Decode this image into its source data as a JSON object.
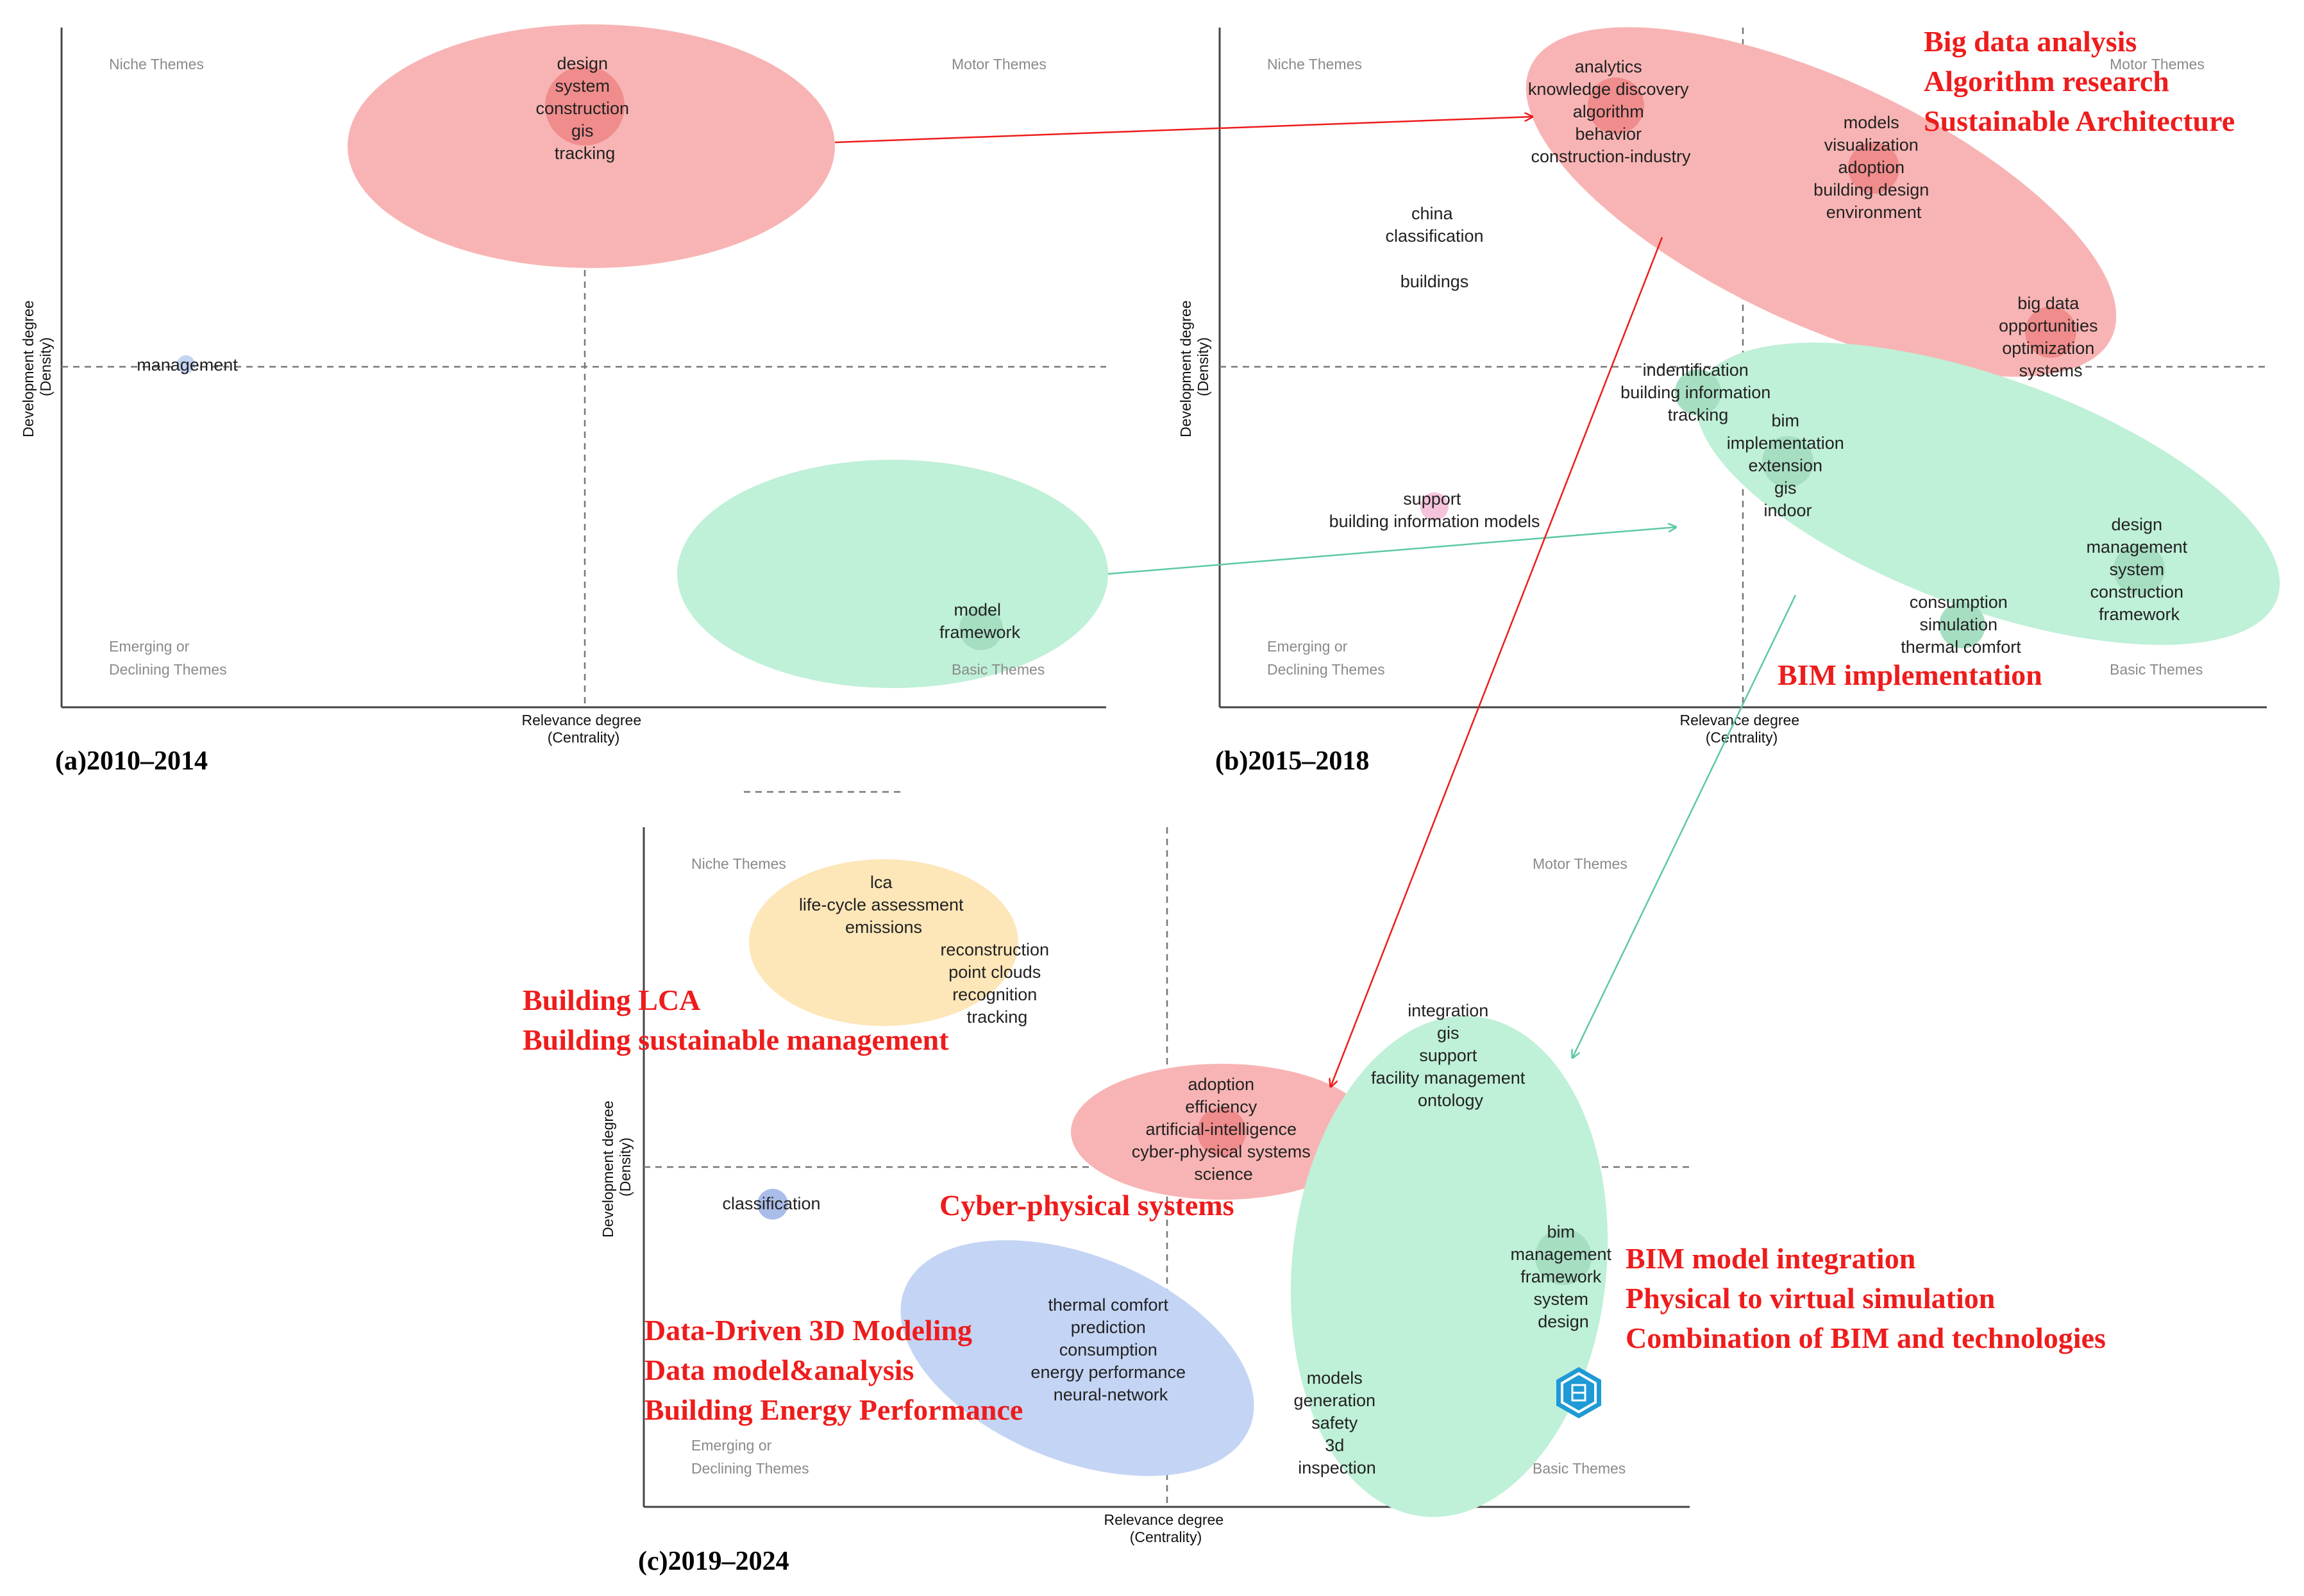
{
  "panels": [
    {
      "label": "(a)2010–2014",
      "xlabel": [
        "Relevance degree",
        "(Centrality)"
      ],
      "ylabel": [
        "Development degree",
        "(Density)"
      ],
      "quadrants": {
        "niche": [
          "Niche Themes"
        ],
        "motor": [
          "Motor Themes"
        ],
        "emerging": [
          "Emerging or",
          "Declining Themes"
        ],
        "basic": [
          "Basic Themes"
        ]
      },
      "clusters": [
        {
          "name": "management",
          "keywords": [
            "management"
          ]
        },
        {
          "name": "design",
          "keywords": [
            "design",
            "system",
            "construction",
            "gis",
            "tracking"
          ]
        },
        {
          "name": "model",
          "keywords": [
            "model",
            "framework"
          ]
        }
      ]
    },
    {
      "label": "(b)2015–2018",
      "xlabel": [
        "Relevance degree",
        "(Centrality)"
      ],
      "ylabel": [
        "Development degree",
        "(Density)"
      ],
      "quadrants": {
        "niche": [
          "Niche Themes"
        ],
        "motor": [
          "Motor Themes"
        ],
        "emerging": [
          "Emerging or",
          "Declining Themes"
        ],
        "basic": [
          "Basic Themes"
        ]
      },
      "clusters": [
        {
          "name": "analytics",
          "keywords": [
            "analytics",
            "knowledge discovery",
            "algorithm",
            "behavior",
            "construction-industry"
          ]
        },
        {
          "name": "models",
          "keywords": [
            "models",
            "visualization",
            "adoption",
            "building design",
            "environment"
          ]
        },
        {
          "name": "china",
          "keywords": [
            "china",
            "classification"
          ]
        },
        {
          "name": "buildings",
          "keywords": [
            "buildings"
          ]
        },
        {
          "name": "big data",
          "keywords": [
            "big data",
            "opportunities",
            "optimization",
            "systems"
          ]
        },
        {
          "name": "indentification",
          "keywords": [
            "indentification",
            "building information",
            "tracking"
          ]
        },
        {
          "name": "bim",
          "keywords": [
            "bim",
            "implementation",
            "extension",
            "gis",
            "indoor"
          ]
        },
        {
          "name": "support",
          "keywords": [
            "support",
            "building information models"
          ]
        },
        {
          "name": "design",
          "keywords": [
            "design",
            "management",
            "system",
            "construction",
            "framework"
          ]
        },
        {
          "name": "consumption",
          "keywords": [
            "consumption",
            "simulation",
            "thermal comfort"
          ]
        }
      ]
    },
    {
      "label": "(c)2019–2024",
      "xlabel": [
        "Relevance degree",
        "(Centrality)"
      ],
      "ylabel": [
        "Development degree",
        "(Density)"
      ],
      "quadrants": {
        "niche": [
          "Niche Themes"
        ],
        "motor": [
          "Motor Themes"
        ],
        "emerging": [
          "Emerging or",
          "Declining Themes"
        ],
        "basic": [
          "Basic Themes"
        ]
      },
      "clusters": [
        {
          "name": "lca",
          "keywords": [
            "lca",
            "life-cycle assessment",
            "emissions"
          ]
        },
        {
          "name": "reconstruction",
          "keywords": [
            "reconstruction",
            "point clouds",
            "recognition",
            "tracking"
          ]
        },
        {
          "name": "integration",
          "keywords": [
            "integration",
            "gis",
            "support",
            "facility management",
            "ontology"
          ]
        },
        {
          "name": "adoption",
          "keywords": [
            "adoption",
            "efficiency",
            "artificial-intelligence",
            "cyber-physical systems",
            "science"
          ]
        },
        {
          "name": "classification",
          "keywords": [
            "classification"
          ]
        },
        {
          "name": "bim",
          "keywords": [
            "bim",
            "management",
            "framework",
            "system",
            "design"
          ]
        },
        {
          "name": "thermal comfort",
          "keywords": [
            "thermal comfort",
            "prediction",
            "consumption",
            "energy performance",
            "neural-network"
          ]
        },
        {
          "name": "models",
          "keywords": [
            "models",
            "generation",
            "safety",
            "3d",
            "inspection"
          ]
        }
      ]
    }
  ],
  "annotations": [
    {
      "name": "big-data",
      "lines": [
        "Big data analysis",
        "Algorithm research",
        "Sustainable Architecture"
      ]
    },
    {
      "name": "bim-implementation",
      "lines": [
        "BIM implementation"
      ]
    },
    {
      "name": "building-lca",
      "lines": [
        "Building LCA",
        "Building sustainable management"
      ]
    },
    {
      "name": "cyber-physical",
      "lines": [
        "Cyber-physical systems"
      ]
    },
    {
      "name": "bim-integration",
      "lines": [
        "BIM model integration",
        "Physical to virtual simulation",
        "Combination of BIM and technologies"
      ]
    },
    {
      "name": "data-driven",
      "lines": [
        "Data-Driven 3D Modeling",
        "Data model&analysis",
        "Building Energy Performance"
      ]
    }
  ],
  "colors": {
    "red_cluster": "#f8b4b4",
    "red_dot": "#f08c8c",
    "green_cluster": "#bff0d8",
    "green_dot": "#a6dec2",
    "blue_cluster": "#c4d4f4",
    "blue_dot": "#aabde8",
    "yellow_cluster": "#fde6b8",
    "pink_dot": "#f5c4dc",
    "red_arrow": "#ee1c1c",
    "green_arrow": "#5ec9a0",
    "annotation": "#ee1c1c"
  },
  "logo": {
    "icon": "hexagon-logo-icon"
  }
}
